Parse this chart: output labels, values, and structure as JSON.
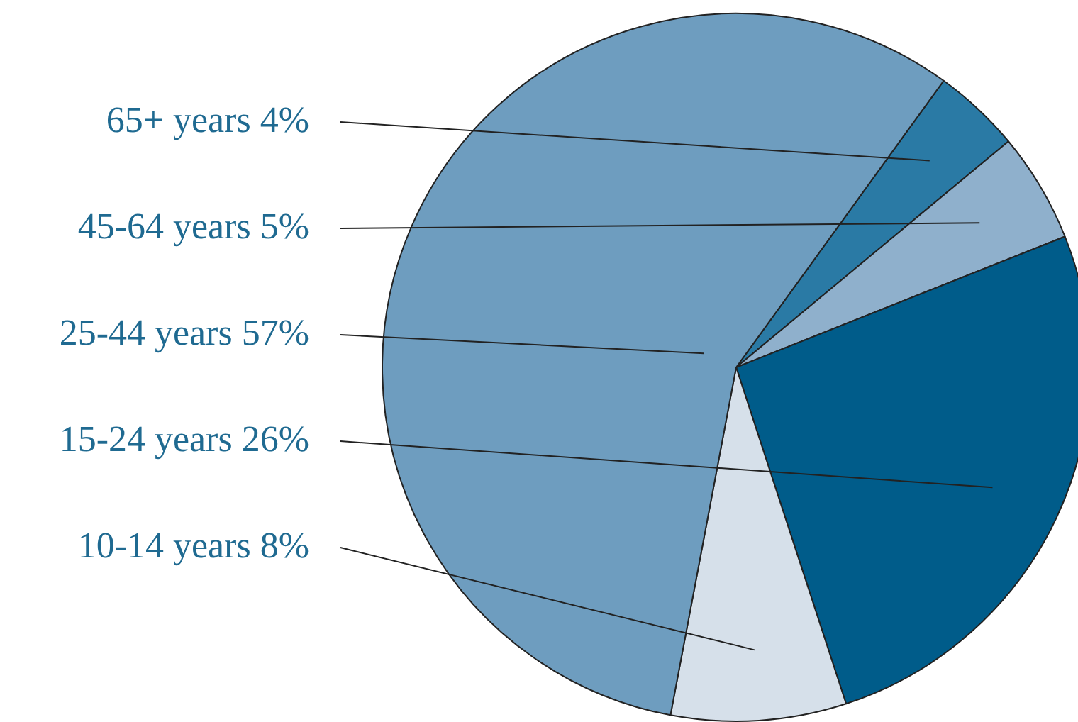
{
  "chart_data": {
    "type": "pie",
    "categories": [
      "65+ years",
      "45-64 years",
      "15-24 years",
      "10-14 years",
      "25-44 years"
    ],
    "values": [
      4,
      5,
      26,
      8,
      57
    ],
    "value_labels": [
      "4%",
      "5%",
      "26%",
      "8%",
      "57%"
    ],
    "colors": [
      "#2a7aa5",
      "#8fb0cc",
      "#005c8a",
      "#d6e0ea",
      "#6e9dbf"
    ],
    "legend": false
  }
}
